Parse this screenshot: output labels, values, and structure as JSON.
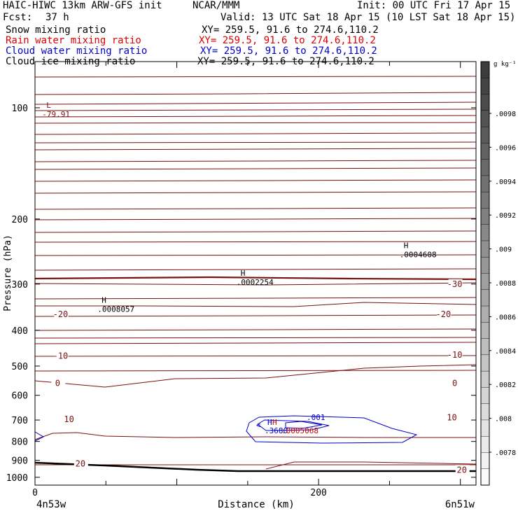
{
  "header": {
    "title_left": "HAIC-HIWC 13km ARW-GFS init",
    "title_center": "NCAR/MMM",
    "init": "Init: 00 UTC Fri 17 Apr 15",
    "fcst_label": "Fcst:",
    "fcst_value": "37 h",
    "valid": "Valid: 13 UTC Sat 18 Apr 15 (10 LST Sat 18 Apr 15)",
    "fields": [
      {
        "name": "Snow mixing ratio",
        "xy": "XY= 259.5, 91.6 to 274.6,110.2",
        "color": "#000000"
      },
      {
        "name": "Rain water mixing ratio",
        "xy": "XY= 259.5, 91.6 to 274.6,110.2",
        "color": "#e00000"
      },
      {
        "name": "Cloud water mixing ratio",
        "xy": "XY= 259.5, 91.6 to 274.6,110.2",
        "color": "#0000cc"
      },
      {
        "name": "Cloud ice mixing ratio",
        "xy": "XY= 259.5, 91.6 to 274.6,110.2",
        "color": "#000000"
      }
    ]
  },
  "chart_data": {
    "type": "contour",
    "xlabel": "Distance (km)",
    "ylabel": "Pressure (hPa)",
    "xlim": [
      0,
      311
    ],
    "ylim": [
      1050,
      75
    ],
    "y_scale": "log",
    "x_ticks": [
      0,
      200
    ],
    "y_ticks": [
      100,
      200,
      300,
      400,
      500,
      600,
      700,
      800,
      900,
      1000
    ],
    "x_endpoints": {
      "left": "4n53w",
      "right": "6n51w"
    },
    "temperature_contour_color": "#7a1010",
    "temperature_labels": [
      {
        "text": "-30",
        "x": 296,
        "p": 300
      },
      {
        "text": "-20",
        "x": 18,
        "p": 362
      },
      {
        "text": "-20",
        "x": 288,
        "p": 362
      },
      {
        "text": "-10",
        "x": 18,
        "p": 470
      },
      {
        "text": "-10",
        "x": 296,
        "p": 466
      },
      {
        "text": "0",
        "x": 16,
        "p": 557
      },
      {
        "text": "0",
        "x": 296,
        "p": 557
      },
      {
        "text": "10",
        "x": 24,
        "p": 697
      },
      {
        "text": "10",
        "x": 294,
        "p": 690
      },
      {
        "text": "20",
        "x": 32,
        "p": 920
      },
      {
        "text": "20",
        "x": 301,
        "p": 955
      }
    ],
    "extrema": [
      {
        "type": "L",
        "value": "-79.91",
        "x": 8,
        "p": 100,
        "color": "#7a1010"
      },
      {
        "type": "H",
        "value": ".0008057",
        "x": 47,
        "p": 337,
        "color": "#000000"
      },
      {
        "type": "H",
        "value": ".0002254",
        "x": 145,
        "p": 285,
        "color": "#000000"
      },
      {
        "type": "H",
        "value": ".0004608",
        "x": 260,
        "p": 240,
        "color": "#000000"
      }
    ],
    "cloud_water": {
      "color": "#0000cc",
      "labels": [
        ".001",
        ".3680"
      ],
      "center_label": "H"
    },
    "rain_water": {
      "color": "#cc0000",
      "labels": [
        ".0005068"
      ]
    },
    "colorbar": {
      "unit": "g kg⁻¹",
      "tick_labels": [
        ".0098",
        ".0096",
        ".0094",
        ".0092",
        ".009",
        ".0088",
        ".0086",
        ".0084",
        ".0082",
        ".008",
        ".0078"
      ]
    }
  }
}
